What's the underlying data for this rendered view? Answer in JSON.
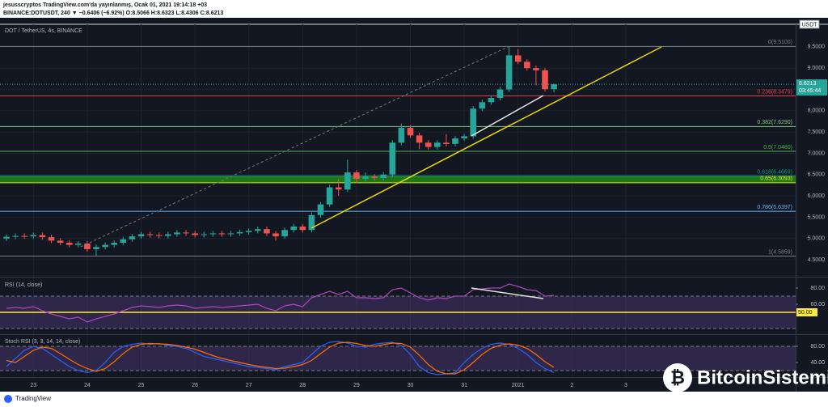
{
  "header": {
    "line1": "jesusscryptos TradingView.com'da yayınlanmış, Ocak 01, 2021 19:14:18 +03",
    "line2": "BINANCE:DOTUSDT, 240 ▼ −0.6406 (−6.92%) O:8.5066 H:8.6323 L:8.4306 C:8.6213"
  },
  "footer": {
    "brand": "TradingView",
    "watermark": "BitcoinSistemi"
  },
  "chart_data": [
    {
      "type": "candlestick",
      "title": "DOT / TetherUS, 4s, BINANCE",
      "currency": "USDT",
      "countdown": "03:45:44",
      "up_color": "#26a69a",
      "down_color": "#ef5350",
      "grid": true,
      "categories": [
        null,
        null,
        null,
        "23",
        null,
        null,
        null,
        null,
        null,
        "24",
        null,
        null,
        null,
        null,
        null,
        "25",
        null,
        null,
        null,
        null,
        null,
        "26",
        null,
        null,
        null,
        null,
        null,
        "27",
        null,
        null,
        null,
        null,
        null,
        "28",
        null,
        null,
        null,
        null,
        null,
        "29",
        null,
        null,
        null,
        null,
        null,
        "30",
        null,
        null,
        null,
        null,
        null,
        "31",
        null,
        null,
        null,
        null,
        null,
        "2021",
        null,
        null,
        null,
        null,
        null,
        "2",
        null,
        null,
        null,
        null,
        null,
        "3"
      ],
      "open": [
        5.0,
        5.04,
        5.06,
        5.05,
        5.08,
        5.03,
        4.95,
        4.9,
        4.85,
        4.88,
        4.75,
        4.8,
        4.85,
        4.9,
        4.98,
        5.05,
        5.1,
        5.08,
        5.06,
        5.1,
        5.14,
        5.12,
        5.08,
        5.1,
        5.12,
        5.1,
        5.12,
        5.15,
        5.18,
        5.22,
        5.12,
        5.05,
        5.2,
        5.28,
        5.2,
        5.55,
        5.8,
        6.2,
        6.15,
        6.55,
        6.4,
        6.45,
        6.42,
        6.5,
        7.25,
        7.6,
        7.42,
        7.25,
        7.15,
        7.25,
        7.22,
        7.35,
        7.4,
        8.05,
        8.2,
        8.3,
        8.5,
        9.3,
        9.15,
        9.0,
        8.95,
        8.5066,
        null,
        null,
        null,
        null,
        null,
        null,
        null,
        null
      ],
      "high": [
        5.1,
        5.12,
        5.12,
        5.14,
        5.14,
        5.09,
        5.01,
        4.96,
        4.94,
        4.94,
        4.86,
        4.91,
        4.96,
        5.04,
        5.11,
        5.16,
        5.16,
        5.14,
        5.16,
        5.2,
        5.2,
        5.18,
        5.16,
        5.18,
        5.18,
        5.18,
        5.21,
        5.24,
        5.28,
        5.28,
        5.18,
        5.26,
        5.34,
        5.34,
        5.61,
        5.86,
        6.26,
        6.4,
        6.85,
        6.61,
        6.55,
        6.51,
        6.56,
        7.31,
        7.7,
        7.66,
        7.48,
        7.31,
        7.31,
        7.45,
        7.41,
        7.46,
        8.11,
        8.26,
        8.36,
        8.56,
        9.51,
        9.45,
        9.21,
        9.06,
        9.01,
        8.6323,
        null,
        null,
        null,
        null,
        null,
        null,
        null,
        null
      ],
      "low": [
        4.94,
        4.98,
        4.99,
        4.99,
        4.97,
        4.89,
        4.84,
        4.79,
        4.79,
        4.69,
        4.5859,
        4.74,
        4.79,
        4.84,
        4.92,
        4.99,
        5.02,
        5.0,
        5.0,
        5.04,
        5.06,
        5.02,
        5.02,
        5.04,
        5.04,
        5.04,
        5.06,
        5.09,
        5.12,
        5.06,
        4.95,
        4.99,
        5.14,
        5.14,
        5.14,
        5.49,
        5.74,
        6.0,
        6.09,
        6.3,
        6.34,
        6.36,
        6.36,
        6.44,
        7.19,
        7.36,
        7.1,
        7.09,
        7.09,
        7.16,
        7.16,
        7.29,
        7.34,
        7.99,
        8.14,
        8.24,
        8.44,
        9.09,
        8.94,
        8.6,
        8.45,
        8.4306,
        null,
        null,
        null,
        null,
        null,
        null,
        null,
        null
      ],
      "close": [
        5.04,
        5.06,
        5.05,
        5.08,
        5.03,
        4.95,
        4.9,
        4.85,
        4.88,
        4.75,
        4.8,
        4.85,
        4.9,
        4.98,
        5.05,
        5.1,
        5.08,
        5.06,
        5.1,
        5.14,
        5.12,
        5.08,
        5.1,
        5.12,
        5.1,
        5.12,
        5.15,
        5.18,
        5.22,
        5.12,
        5.05,
        5.2,
        5.28,
        5.2,
        5.55,
        5.8,
        6.2,
        6.15,
        6.55,
        6.4,
        6.45,
        6.42,
        6.5,
        7.25,
        7.6,
        7.42,
        7.25,
        7.15,
        7.25,
        7.22,
        7.35,
        7.4,
        8.05,
        8.2,
        8.3,
        8.5,
        9.3,
        9.15,
        9.0,
        8.95,
        8.5066,
        8.6213,
        null,
        null,
        null,
        null,
        null,
        null,
        null,
        null
      ],
      "ylim": [
        4.14,
        10.03
      ],
      "yticks": [
        {
          "value": 4.5,
          "label": "4.5000"
        },
        {
          "value": 5,
          "label": "5.0000"
        },
        {
          "value": 5.5,
          "label": "5.5000"
        },
        {
          "value": 6,
          "label": "6.0000"
        },
        {
          "value": 6.5,
          "label": "6.5000"
        },
        {
          "value": 7,
          "label": "7.0000"
        },
        {
          "value": 7.5,
          "label": "7.5000"
        },
        {
          "value": 8,
          "label": "8.0000"
        },
        {
          "value": 8.5,
          "label": "8.5000"
        },
        {
          "value": 9,
          "label": "9.0000"
        },
        {
          "value": 9.5,
          "label": "9.5000"
        }
      ],
      "fib_levels": [
        {
          "value": 9.51,
          "label": "0(9.5100)",
          "color": "#787b86"
        },
        {
          "value": 8.3479,
          "label": "0.236(8.3479)",
          "color": "#f23645"
        },
        {
          "value": 7.629,
          "label": "0.382(7.6290)",
          "color": "#81c784"
        },
        {
          "value": 7.048,
          "label": "0.5(7.0480)",
          "color": "#4caf50"
        },
        {
          "value": 6.4669,
          "label": "0.618(6.4669)",
          "color": "#089981"
        },
        {
          "value": 6.3093,
          "label": "0.65(6.3093)",
          "color": "#e6e600"
        },
        {
          "value": 5.6397,
          "label": "0.786(5.6397)",
          "color": "#64b5f6"
        },
        {
          "value": 4.5859,
          "label": "1(4.5859)",
          "color": "#787b86"
        }
      ],
      "zone_levels": [
        4,
        5
      ],
      "zone_color": "#1b8a1b"
    },
    {
      "type": "line",
      "title": "RSI (14, close)",
      "ylim": [
        24,
        91
      ],
      "yticks": [
        {
          "value": 80,
          "label": "80.00"
        },
        {
          "value": 60,
          "label": "60.00"
        }
      ],
      "band": [
        30,
        70
      ],
      "band_color": "#7e57c2",
      "level": {
        "value": 50,
        "label": "50.00",
        "color": "#ffeb3b"
      },
      "series": [
        {
          "color": "#ab47bc",
          "values": [
            55,
            56,
            55,
            57,
            52,
            48,
            45,
            42,
            44,
            38,
            42,
            45,
            48,
            52,
            56,
            58,
            57,
            56,
            58,
            59,
            58,
            55,
            56,
            57,
            56,
            57,
            58,
            59,
            60,
            55,
            52,
            58,
            60,
            57,
            68,
            72,
            76,
            72,
            76,
            68,
            68,
            67,
            68,
            78,
            80,
            74,
            68,
            65,
            68,
            67,
            70,
            70,
            78,
            79,
            80,
            80,
            85,
            82,
            78,
            77,
            70,
            71,
            null,
            null,
            null,
            null,
            null,
            null,
            null,
            null
          ]
        }
      ]
    },
    {
      "type": "line",
      "title": "Stoch RSI (3, 3, 14, 14, close)",
      "ylim": [
        12,
        106
      ],
      "yticks": [
        {
          "value": 80,
          "label": "80.00"
        },
        {
          "value": 40,
          "label": "40.00"
        }
      ],
      "band": [
        20,
        80
      ],
      "band_color": "#7e57c2",
      "series": [
        {
          "color": "#2962ff",
          "values": [
            30,
            50,
            70,
            80,
            75,
            60,
            45,
            30,
            20,
            15,
            20,
            40,
            65,
            80,
            85,
            88,
            85,
            87,
            82,
            80,
            75,
            65,
            55,
            50,
            45,
            40,
            35,
            30,
            28,
            25,
            22,
            30,
            35,
            40,
            60,
            80,
            90,
            92,
            88,
            80,
            78,
            85,
            88,
            90,
            82,
            60,
            30,
            15,
            10,
            12,
            15,
            40,
            60,
            75,
            85,
            88,
            85,
            75,
            60,
            40,
            25,
            15,
            null,
            null,
            null,
            null,
            null,
            null,
            null,
            null
          ]
        },
        {
          "color": "#ff6d00",
          "values": [
            45,
            40,
            55,
            70,
            78,
            75,
            62,
            48,
            35,
            25,
            18,
            25,
            42,
            62,
            78,
            85,
            87,
            86,
            85,
            82,
            78,
            73,
            65,
            57,
            50,
            45,
            40,
            35,
            31,
            28,
            25,
            26,
            30,
            35,
            45,
            62,
            78,
            88,
            90,
            87,
            82,
            80,
            84,
            88,
            87,
            78,
            58,
            35,
            18,
            12,
            12,
            22,
            40,
            60,
            75,
            83,
            86,
            83,
            75,
            60,
            42,
            28,
            null,
            null,
            null,
            null,
            null,
            null,
            null,
            null
          ]
        }
      ]
    }
  ]
}
